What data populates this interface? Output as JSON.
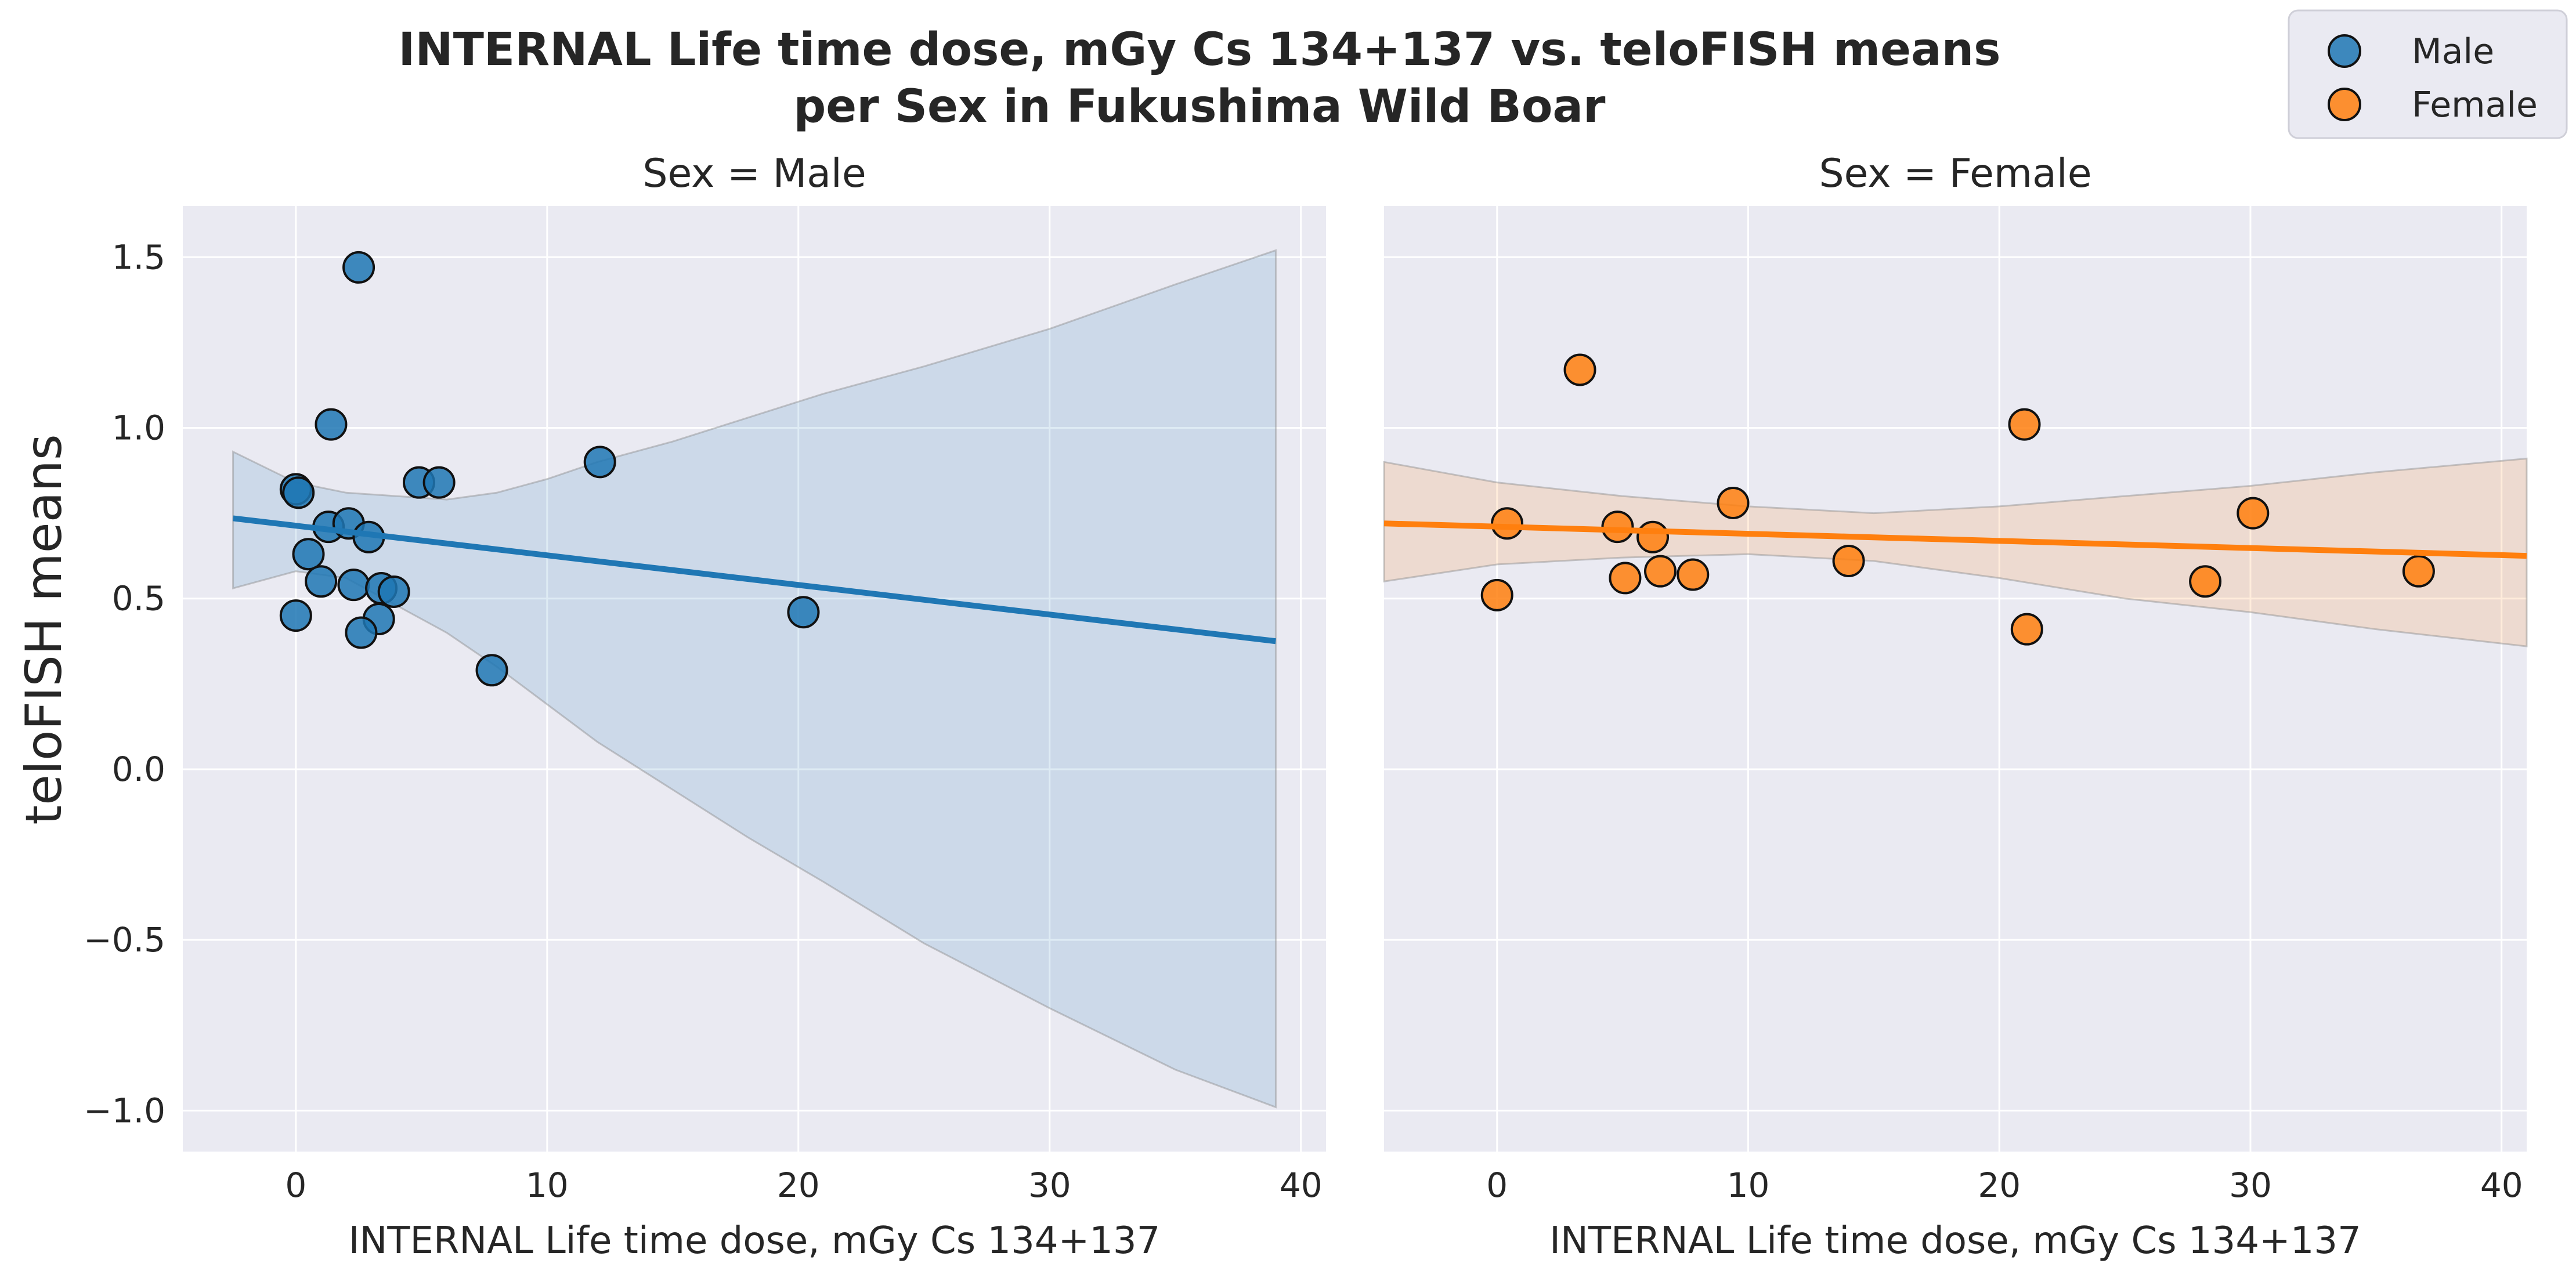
{
  "chart_data": {
    "type": "scatter",
    "title_line1": "INTERNAL Life time dose, mGy Cs 134+137 vs. teloFISH means",
    "title_line2": "per Sex in Fukushima Wild Boar",
    "ylabel": "teloFISH means",
    "ylim": [
      -1.12,
      1.65
    ],
    "yticks": [
      1.5,
      1.0,
      0.5,
      0.0,
      -0.5,
      -1.0
    ],
    "ytick_labels": [
      "1.5",
      "1.0",
      "0.5",
      "0.0",
      "−0.5",
      "−1.0"
    ],
    "grid": true,
    "legend_position": "top-right",
    "legend": [
      {
        "label": "Male",
        "color": "#1f77b4"
      },
      {
        "label": "Female",
        "color": "#ff7f0e"
      }
    ],
    "facets": [
      {
        "title": "Sex = Male",
        "xlabel": "INTERNAL Life time dose, mGy Cs 134+137",
        "xlim": [
          -4.5,
          41
        ],
        "xticks": [
          0,
          10,
          20,
          30,
          40
        ],
        "xtick_labels": [
          "0",
          "10",
          "20",
          "30",
          "40"
        ],
        "color": "#1f77b4",
        "points": [
          {
            "x": 2.5,
            "y": 1.47
          },
          {
            "x": 1.4,
            "y": 1.01
          },
          {
            "x": 0.0,
            "y": 0.82
          },
          {
            "x": 0.1,
            "y": 0.81
          },
          {
            "x": 0.5,
            "y": 0.63
          },
          {
            "x": 1.3,
            "y": 0.71
          },
          {
            "x": 2.1,
            "y": 0.72
          },
          {
            "x": 2.9,
            "y": 0.68
          },
          {
            "x": 1.0,
            "y": 0.55
          },
          {
            "x": 2.3,
            "y": 0.54
          },
          {
            "x": 3.4,
            "y": 0.53
          },
          {
            "x": 3.9,
            "y": 0.52
          },
          {
            "x": 0.0,
            "y": 0.45
          },
          {
            "x": 3.3,
            "y": 0.44
          },
          {
            "x": 2.6,
            "y": 0.4
          },
          {
            "x": 4.9,
            "y": 0.84
          },
          {
            "x": 5.7,
            "y": 0.84
          },
          {
            "x": 7.8,
            "y": 0.29
          },
          {
            "x": 12.1,
            "y": 0.9
          },
          {
            "x": 20.2,
            "y": 0.46
          }
        ],
        "regression": {
          "x": [
            -2.5,
            39.0
          ],
          "y": [
            0.735,
            0.375
          ]
        },
        "ci": {
          "x": [
            -2.5,
            0,
            2,
            4,
            6,
            8,
            10,
            12,
            15,
            18,
            21,
            25,
            30,
            35,
            39
          ],
          "upper": [
            0.93,
            0.84,
            0.81,
            0.8,
            0.79,
            0.81,
            0.85,
            0.9,
            0.96,
            1.03,
            1.1,
            1.18,
            1.29,
            1.42,
            1.52
          ],
          "lower": [
            0.53,
            0.58,
            0.56,
            0.48,
            0.4,
            0.3,
            0.19,
            0.08,
            -0.06,
            -0.2,
            -0.33,
            -0.51,
            -0.7,
            -0.88,
            -0.99
          ]
        }
      },
      {
        "title": "Sex = Female",
        "xlabel": "INTERNAL Life time dose, mGy Cs 134+137",
        "xlim": [
          -4.5,
          41
        ],
        "xticks": [
          0,
          10,
          20,
          30,
          40
        ],
        "xtick_labels": [
          "0",
          "10",
          "20",
          "30",
          "40"
        ],
        "color": "#ff7f0e",
        "points": [
          {
            "x": 3.3,
            "y": 1.17
          },
          {
            "x": 0.4,
            "y": 0.72
          },
          {
            "x": 0.0,
            "y": 0.51
          },
          {
            "x": 4.8,
            "y": 0.71
          },
          {
            "x": 6.2,
            "y": 0.68
          },
          {
            "x": 5.1,
            "y": 0.56
          },
          {
            "x": 6.5,
            "y": 0.58
          },
          {
            "x": 7.8,
            "y": 0.57
          },
          {
            "x": 9.4,
            "y": 0.78
          },
          {
            "x": 14.0,
            "y": 0.61
          },
          {
            "x": 21.0,
            "y": 1.01
          },
          {
            "x": 21.1,
            "y": 0.41
          },
          {
            "x": 28.2,
            "y": 0.55
          },
          {
            "x": 30.1,
            "y": 0.75
          },
          {
            "x": 36.7,
            "y": 0.58
          }
        ],
        "regression": {
          "x": [
            -4.5,
            41.0
          ],
          "y": [
            0.72,
            0.625
          ]
        },
        "ci": {
          "x": [
            -4.5,
            0,
            5,
            10,
            15,
            20,
            25,
            30,
            35,
            41
          ],
          "upper": [
            0.9,
            0.84,
            0.8,
            0.77,
            0.75,
            0.77,
            0.8,
            0.83,
            0.87,
            0.91
          ],
          "lower": [
            0.55,
            0.6,
            0.62,
            0.63,
            0.61,
            0.56,
            0.5,
            0.46,
            0.41,
            0.36
          ]
        }
      }
    ]
  }
}
